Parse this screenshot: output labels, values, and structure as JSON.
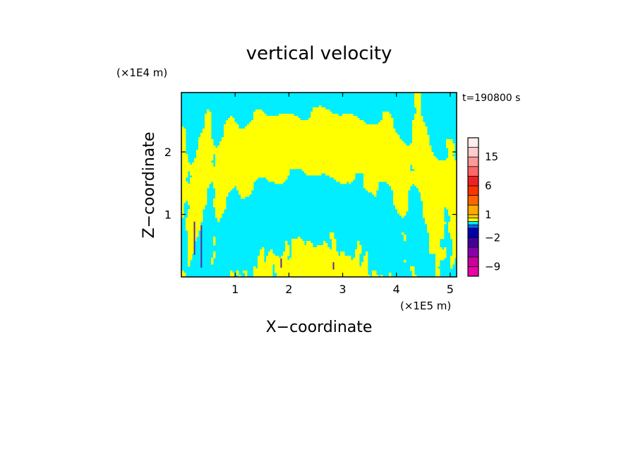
{
  "chart_data": {
    "type": "heatmap",
    "title": "vertical velocity",
    "xlabel": "X−coordinate",
    "ylabel": "Z−coordinate",
    "x_unit": "(×1E5 m)",
    "y_unit": "(×1E4 m)",
    "time_label": "t=190800 s",
    "xlim": [
      0,
      5.12
    ],
    "ylim": [
      0,
      2.95
    ],
    "x_ticks": [
      {
        "value": 1,
        "label": "1"
      },
      {
        "value": 2,
        "label": "2"
      },
      {
        "value": 3,
        "label": "3"
      },
      {
        "value": 4,
        "label": "4"
      },
      {
        "value": 5,
        "label": "5"
      }
    ],
    "y_ticks": [
      {
        "value": 1,
        "label": "1"
      },
      {
        "value": 2,
        "label": "2"
      }
    ],
    "field": {
      "positive_color": "#ffff00",
      "negative_color": "#00eeff",
      "strong_negative_color": "#5a2aa8",
      "x_range": [
        0,
        5.12
      ],
      "z_range": [
        0,
        2.95
      ]
    },
    "colorbar": {
      "levels": [
        -12,
        -9,
        -6,
        -4,
        -2,
        -1,
        -0.5,
        0,
        0.5,
        1,
        2,
        4,
        6,
        9,
        12,
        15,
        20,
        25
      ],
      "colors": [
        "#ee00aa",
        "#cc0099",
        "#8800aa",
        "#440099",
        "#0000aa",
        "#0066ff",
        "#00eeff",
        "#ffff00",
        "#ffcc00",
        "#ffaa00",
        "#ff6600",
        "#ff3300",
        "#ee2222",
        "#ff6666",
        "#ff9999",
        "#ffcccc",
        "#ffeeee"
      ],
      "tick_labels": [
        {
          "value": -9,
          "label": "−9"
        },
        {
          "value": -2,
          "label": "−2"
        },
        {
          "value": 1,
          "label": "1"
        },
        {
          "value": 6,
          "label": "6"
        },
        {
          "value": 15,
          "label": "15"
        }
      ]
    }
  }
}
